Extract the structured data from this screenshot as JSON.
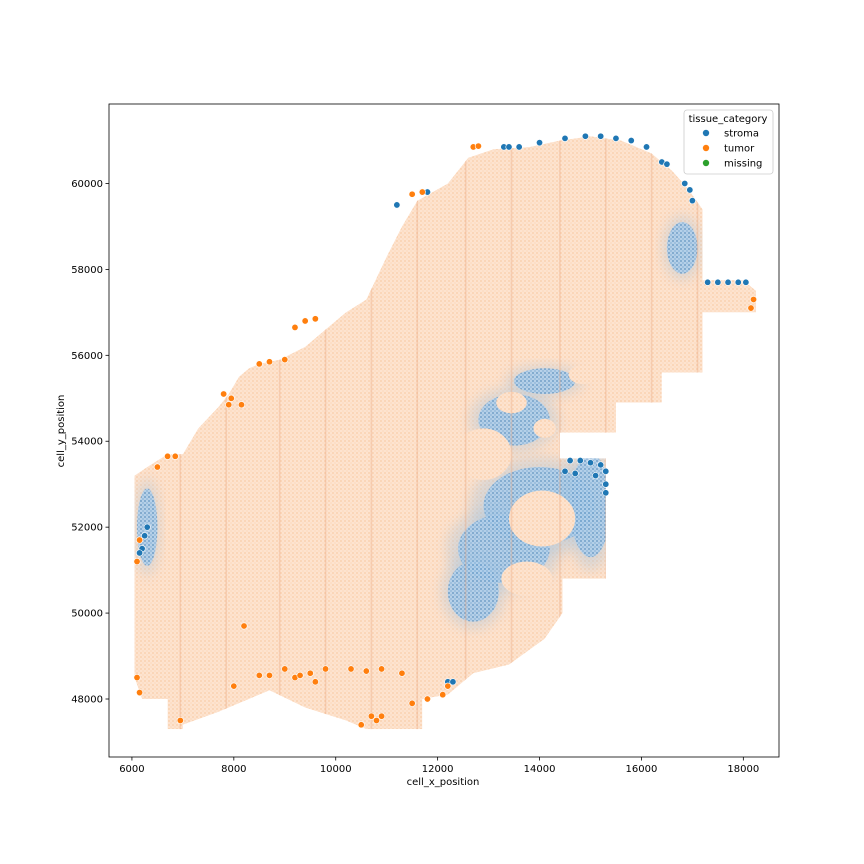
{
  "chart_data": {
    "type": "scatter",
    "title": "",
    "xlabel": "cell_x_position",
    "ylabel": "cell_y_position",
    "xlim": [
      5550,
      18700
    ],
    "ylim": [
      46650,
      61850
    ],
    "x_ticks": [
      6000,
      8000,
      10000,
      12000,
      14000,
      16000,
      18000
    ],
    "y_ticks": [
      48000,
      50000,
      52000,
      54000,
      56000,
      58000,
      60000
    ],
    "grid": false,
    "legend": {
      "title": "tissue_category",
      "position": "top-right",
      "entries": [
        {
          "label": "stroma",
          "color": "#1f77b4"
        },
        {
          "label": "tumor",
          "color": "#ff7f0e"
        },
        {
          "label": "missing",
          "color": "#2ca02c"
        }
      ]
    },
    "tissue_outline": [
      [
        6050,
        53200
      ],
      [
        6300,
        53400
      ],
      [
        6700,
        53700
      ],
      [
        7000,
        53700
      ],
      [
        7300,
        54300
      ],
      [
        7700,
        54800
      ],
      [
        7900,
        55100
      ],
      [
        8100,
        55500
      ],
      [
        8300,
        55700
      ],
      [
        8500,
        55800
      ],
      [
        8900,
        55900
      ],
      [
        9400,
        56200
      ],
      [
        9800,
        56600
      ],
      [
        10200,
        57000
      ],
      [
        10600,
        57300
      ],
      [
        11000,
        58300
      ],
      [
        11300,
        59000
      ],
      [
        11600,
        59600
      ],
      [
        11900,
        59800
      ],
      [
        12200,
        60000
      ],
      [
        12600,
        60600
      ],
      [
        13100,
        60800
      ],
      [
        13800,
        60850
      ],
      [
        14400,
        61000
      ],
      [
        15000,
        61100
      ],
      [
        15600,
        61000
      ],
      [
        16200,
        60700
      ],
      [
        16600,
        60300
      ],
      [
        16900,
        59900
      ],
      [
        17200,
        59400
      ],
      [
        17200,
        57750
      ],
      [
        18000,
        57750
      ],
      [
        18250,
        57500
      ],
      [
        18250,
        57000
      ],
      [
        17200,
        57000
      ],
      [
        17200,
        55600
      ],
      [
        16400,
        55600
      ],
      [
        16400,
        54900
      ],
      [
        15500,
        54900
      ],
      [
        15500,
        54200
      ],
      [
        14400,
        54200
      ],
      [
        14400,
        53600
      ],
      [
        15300,
        53600
      ],
      [
        15300,
        50800
      ],
      [
        14450,
        50800
      ],
      [
        14450,
        50000
      ],
      [
        14100,
        49400
      ],
      [
        13400,
        48800
      ],
      [
        12700,
        48600
      ],
      [
        12400,
        48300
      ],
      [
        12200,
        48100
      ],
      [
        11700,
        48000
      ],
      [
        11700,
        47300
      ],
      [
        10600,
        47300
      ],
      [
        10200,
        47500
      ],
      [
        9400,
        47800
      ],
      [
        8700,
        48200
      ],
      [
        7700,
        47700
      ],
      [
        7000,
        47400
      ],
      [
        7000,
        47300
      ],
      [
        6700,
        47300
      ],
      [
        6700,
        48000
      ],
      [
        6200,
        48000
      ],
      [
        6050,
        48500
      ],
      [
        6050,
        50500
      ],
      [
        6050,
        52000
      ]
    ],
    "stroma_regions": [
      {
        "cx": 13500,
        "cy": 54500,
        "rx": 700,
        "ry": 600
      },
      {
        "cx": 14000,
        "cy": 52500,
        "rx": 1100,
        "ry": 900
      },
      {
        "cx": 13300,
        "cy": 51500,
        "rx": 900,
        "ry": 800
      },
      {
        "cx": 15000,
        "cy": 52500,
        "rx": 400,
        "ry": 1200
      },
      {
        "cx": 12700,
        "cy": 50500,
        "rx": 500,
        "ry": 700
      },
      {
        "cx": 14100,
        "cy": 55400,
        "rx": 600,
        "ry": 300
      },
      {
        "cx": 16800,
        "cy": 58500,
        "rx": 300,
        "ry": 600
      },
      {
        "cx": 6300,
        "cy": 52000,
        "rx": 200,
        "ry": 900
      }
    ],
    "tumor_islands": [
      {
        "cx": 14050,
        "cy": 52200,
        "rx": 650,
        "ry": 650
      },
      {
        "cx": 12900,
        "cy": 53700,
        "rx": 550,
        "ry": 600
      },
      {
        "cx": 13450,
        "cy": 54900,
        "rx": 300,
        "ry": 250
      },
      {
        "cx": 14100,
        "cy": 54300,
        "rx": 220,
        "ry": 220
      },
      {
        "cx": 13750,
        "cy": 50800,
        "rx": 500,
        "ry": 400
      },
      {
        "cx": 14850,
        "cy": 55550,
        "rx": 280,
        "ry": 220
      }
    ],
    "tumor_edge_points": [
      [
        12700,
        60850
      ],
      [
        12800,
        60870
      ],
      [
        11700,
        59800
      ],
      [
        11500,
        59750
      ],
      [
        9200,
        56650
      ],
      [
        9400,
        56800
      ],
      [
        9600,
        56850
      ],
      [
        9000,
        55900
      ],
      [
        8500,
        55800
      ],
      [
        8700,
        55850
      ],
      [
        7800,
        55100
      ],
      [
        7950,
        55000
      ],
      [
        8150,
        54850
      ],
      [
        6850,
        53650
      ],
      [
        6700,
        53650
      ],
      [
        6500,
        53400
      ],
      [
        6150,
        51700
      ],
      [
        6100,
        51200
      ],
      [
        9000,
        48700
      ],
      [
        9200,
        48500
      ],
      [
        9500,
        48600
      ],
      [
        9800,
        48700
      ],
      [
        10300,
        48700
      ],
      [
        10600,
        48650
      ],
      [
        10900,
        48700
      ],
      [
        11300,
        48600
      ],
      [
        12200,
        48300
      ],
      [
        12100,
        48100
      ],
      [
        11800,
        48000
      ],
      [
        11500,
        47900
      ],
      [
        10700,
        47600
      ],
      [
        10900,
        47600
      ],
      [
        10500,
        47400
      ],
      [
        8500,
        48550
      ],
      [
        8700,
        48550
      ],
      [
        8200,
        49700
      ],
      [
        7900,
        54850
      ],
      [
        6150,
        48150
      ],
      [
        6100,
        48500
      ],
      [
        18200,
        57300
      ],
      [
        18150,
        57100
      ],
      [
        9300,
        48550
      ],
      [
        9600,
        48400
      ],
      [
        10800,
        47500
      ],
      [
        8000,
        48300
      ],
      [
        6950,
        47500
      ]
    ],
    "stroma_edge_points": [
      [
        13300,
        60850
      ],
      [
        13400,
        60850
      ],
      [
        13600,
        60850
      ],
      [
        14000,
        60950
      ],
      [
        14500,
        61050
      ],
      [
        14900,
        61100
      ],
      [
        15200,
        61100
      ],
      [
        15500,
        61050
      ],
      [
        15800,
        61000
      ],
      [
        16100,
        60850
      ],
      [
        16400,
        60500
      ],
      [
        16500,
        60450
      ],
      [
        16850,
        60000
      ],
      [
        16950,
        59850
      ],
      [
        17000,
        59600
      ],
      [
        17300,
        57700
      ],
      [
        17500,
        57700
      ],
      [
        17700,
        57700
      ],
      [
        17900,
        57700
      ],
      [
        18050,
        57700
      ],
      [
        14600,
        53550
      ],
      [
        14800,
        53550
      ],
      [
        15000,
        53500
      ],
      [
        15200,
        53450
      ],
      [
        15300,
        53300
      ],
      [
        15300,
        53000
      ],
      [
        15300,
        52800
      ],
      [
        12200,
        48400
      ],
      [
        12300,
        48400
      ],
      [
        6200,
        51500
      ],
      [
        6150,
        51400
      ],
      [
        11200,
        59500
      ],
      [
        11800,
        59800
      ],
      [
        6300,
        52000
      ],
      [
        6250,
        51800
      ],
      [
        14500,
        53300
      ],
      [
        15100,
        53200
      ],
      [
        14700,
        53250
      ]
    ],
    "vertical_stripe_x": [
      6950,
      7850,
      8900,
      9800,
      10700,
      11600,
      12550,
      13450,
      14400,
      15300,
      16200,
      17100
    ]
  }
}
